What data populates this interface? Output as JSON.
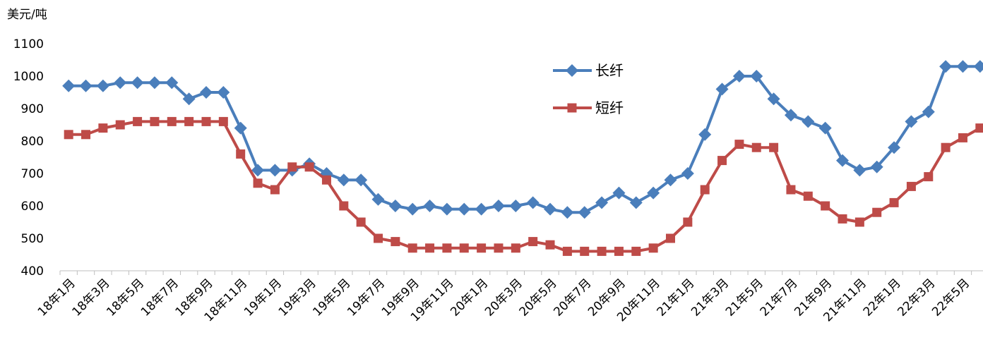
{
  "chart_data": {
    "type": "line",
    "y_axis_label": "美元/吨",
    "categories": [
      "18年1月",
      null,
      "18年3月",
      null,
      "18年5月",
      null,
      "18年7月",
      null,
      "18年9月",
      null,
      "18年11月",
      null,
      "19年1月",
      null,
      "19年3月",
      null,
      "19年5月",
      null,
      "19年7月",
      null,
      "19年9月",
      null,
      "19年11月",
      null,
      "20年1月",
      null,
      "20年3月",
      null,
      "20年5月",
      null,
      "20年7月",
      null,
      "20年9月",
      null,
      "20年11月",
      null,
      "21年1月",
      null,
      "21年3月",
      null,
      "21年5月",
      null,
      "21年7月",
      null,
      "21年9月",
      null,
      "21年11月",
      null,
      "22年1月",
      null,
      "22年3月",
      null,
      "22年5月",
      null
    ],
    "series": [
      {
        "name": "长纤",
        "color": "#4a7ebb",
        "marker": "diamond",
        "values": [
          970,
          970,
          970,
          980,
          980,
          980,
          980,
          930,
          950,
          950,
          840,
          710,
          710,
          710,
          730,
          700,
          680,
          680,
          620,
          600,
          590,
          600,
          590,
          590,
          590,
          600,
          600,
          610,
          590,
          580,
          580,
          610,
          640,
          610,
          640,
          680,
          700,
          820,
          960,
          1000,
          1000,
          930,
          880,
          860,
          840,
          740,
          710,
          720,
          780,
          860,
          890,
          1030,
          1030,
          1030
        ]
      },
      {
        "name": "短纤",
        "color": "#be4b48",
        "marker": "square",
        "values": [
          820,
          820,
          840,
          850,
          860,
          860,
          860,
          860,
          860,
          860,
          760,
          670,
          650,
          720,
          720,
          680,
          600,
          550,
          500,
          490,
          470,
          470,
          470,
          470,
          470,
          470,
          470,
          490,
          480,
          460,
          460,
          460,
          460,
          460,
          470,
          500,
          550,
          650,
          740,
          790,
          780,
          780,
          650,
          630,
          600,
          560,
          550,
          580,
          610,
          660,
          690,
          780,
          810,
          840
        ]
      }
    ],
    "ylim": [
      400,
      1100
    ],
    "yticks": [
      400,
      500,
      600,
      700,
      800,
      900,
      1000,
      1100
    ],
    "grid": false,
    "legend": "top-center"
  }
}
